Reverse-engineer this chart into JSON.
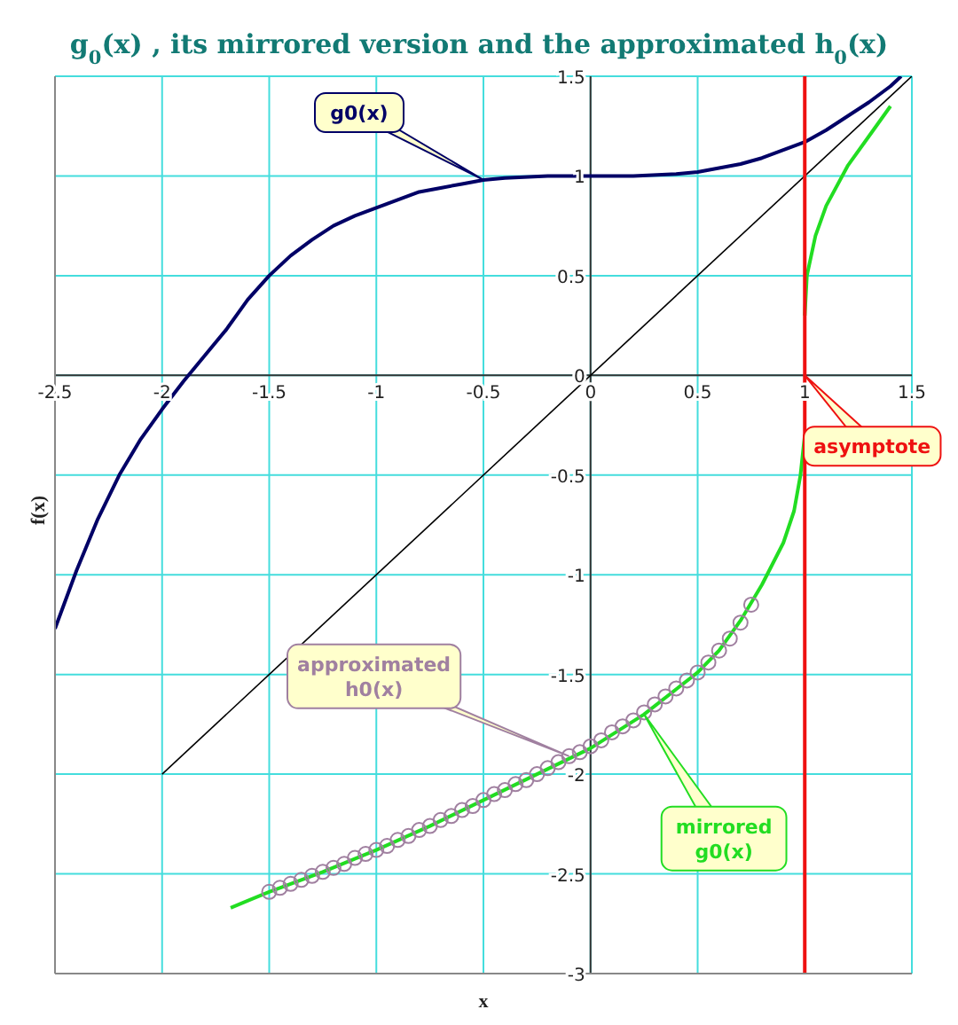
{
  "chart_data": {
    "type": "line",
    "title": "g$_{0}$(x) , its mirrored version and the approximated h$_{0}$(x)",
    "xlabel": "x",
    "ylabel": "f(x)",
    "xlim": [
      -2.5,
      1.5
    ],
    "xticks": [
      -2.5,
      -2,
      -1.5,
      -1,
      -0.5,
      0,
      0.5,
      1,
      1.5
    ],
    "ylim": [
      -3,
      1.5
    ],
    "yticks": [
      -3,
      -2.5,
      -2,
      -1.5,
      -1,
      -0.5,
      0,
      0.5,
      1,
      1.5
    ],
    "grid": true,
    "legend": false,
    "marker": "none",
    "line_style": "solid",
    "ref_lines": [
      {
        "axis": "x",
        "value": 1,
        "label": "asymptote",
        "color": "#ee1111"
      }
    ],
    "series": [
      {
        "name": "g0(x)",
        "color": "#000066",
        "x": [
          -2.5,
          -2.4,
          -2.3,
          -2.2,
          -2.1,
          -2,
          -1.9,
          -1.8,
          -1.7,
          -1.6,
          -1.5,
          -1.4,
          -1.3,
          -1.2,
          -1.1,
          -1,
          -0.9,
          -0.8,
          -0.7,
          -0.6,
          -0.5,
          -0.4,
          -0.2,
          0,
          0.2,
          0.4,
          0.5,
          0.6,
          0.7,
          0.8,
          0.9,
          1,
          1.1,
          1.2,
          1.3,
          1.4,
          1.45
        ],
        "values": [
          -1.27,
          -0.98,
          -0.72,
          -0.5,
          -0.32,
          -0.17,
          -0.03,
          0.1,
          0.23,
          0.38,
          0.5,
          0.6,
          0.68,
          0.75,
          0.8,
          0.84,
          0.88,
          0.92,
          0.94,
          0.96,
          0.98,
          0.99,
          1,
          1,
          1,
          1.01,
          1.02,
          1.04,
          1.06,
          1.09,
          1.13,
          1.17,
          1.23,
          1.3,
          1.37,
          1.45,
          1.5
        ]
      },
      {
        "color": "#000000",
        "x": [
          -2,
          1.5
        ],
        "values": [
          -2,
          1.5
        ]
      },
      {
        "name": "mirrored g0(x)",
        "color": "#22dd22",
        "x": [
          -1.68,
          -1.5,
          -1.25,
          -1,
          -0.75,
          -0.5,
          -0.25,
          0,
          0.25,
          0.5,
          0.6,
          0.7,
          0.75,
          0.8,
          0.9,
          0.95,
          0.98,
          1,
          null,
          1,
          1.01,
          1.05,
          1.1,
          1.2,
          1.3,
          1.4
        ],
        "values": [
          -2.67,
          -2.59,
          -2.49,
          -2.38,
          -2.26,
          -2.13,
          -2,
          -1.87,
          -1.7,
          -1.49,
          -1.38,
          -1.23,
          -1.14,
          -1.05,
          -0.84,
          -0.68,
          -0.5,
          -0.3,
          null,
          0.3,
          0.5,
          0.7,
          0.85,
          1.05,
          1.2,
          1.35
        ]
      },
      {
        "name": "approximated h0(x)",
        "type": "scatter",
        "marker": "circle",
        "color": "#a080a0",
        "x": [
          -1.5,
          -1.45,
          -1.4,
          -1.35,
          -1.3,
          -1.25,
          -1.2,
          -1.15,
          -1.1,
          -1.05,
          -1,
          -0.95,
          -0.9,
          -0.85,
          -0.8,
          -0.75,
          -0.7,
          -0.65,
          -0.6,
          -0.55,
          -0.5,
          -0.45,
          -0.4,
          -0.35,
          -0.3,
          -0.25,
          -0.2,
          -0.15,
          -0.1,
          -0.05,
          0,
          0.05,
          0.1,
          0.15,
          0.2,
          0.25,
          0.3,
          0.35,
          0.4,
          0.45,
          0.5,
          0.55,
          0.6,
          0.65,
          0.7,
          0.75
        ],
        "values": [
          -2.59,
          -2.57,
          -2.55,
          -2.53,
          -2.51,
          -2.49,
          -2.47,
          -2.45,
          -2.42,
          -2.4,
          -2.38,
          -2.36,
          -2.33,
          -2.31,
          -2.28,
          -2.26,
          -2.23,
          -2.21,
          -2.18,
          -2.16,
          -2.13,
          -2.1,
          -2.08,
          -2.05,
          -2.03,
          -2,
          -1.97,
          -1.94,
          -1.91,
          -1.89,
          -1.86,
          -1.83,
          -1.79,
          -1.76,
          -1.73,
          -1.69,
          -1.65,
          -1.61,
          -1.57,
          -1.53,
          -1.49,
          -1.44,
          -1.38,
          -1.32,
          -1.24,
          -1.15
        ]
      }
    ]
  }
}
